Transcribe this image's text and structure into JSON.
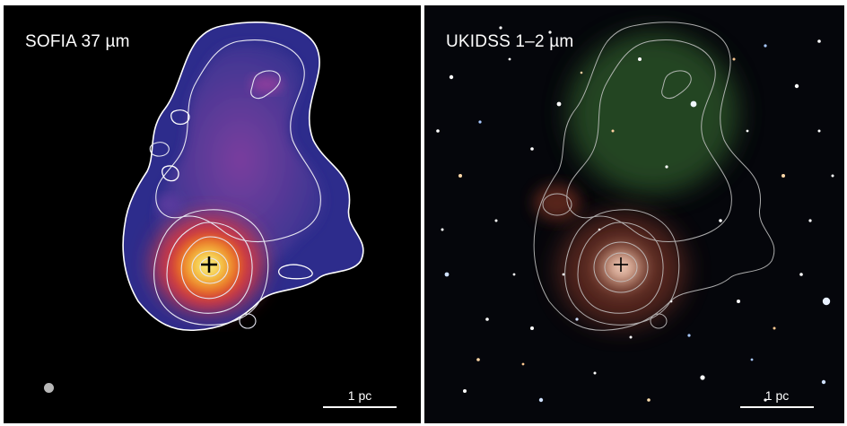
{
  "panels": {
    "left": {
      "label": "SOFIA 37 µm",
      "scale_label": "1 pc"
    },
    "right": {
      "label": "UKIDSS 1–2 µm",
      "scale_label": "1 pc"
    }
  },
  "colors": {
    "background": "#000000",
    "nebula_outer": "#2d2c8c",
    "nebula_mid": "#6a3a9e",
    "nebula_warm": "#d8352a",
    "nebula_core": "#f6d84a",
    "contour": "#ffffff",
    "ir_green": "#3f7a3a",
    "ir_red": "#8a3a2a"
  }
}
